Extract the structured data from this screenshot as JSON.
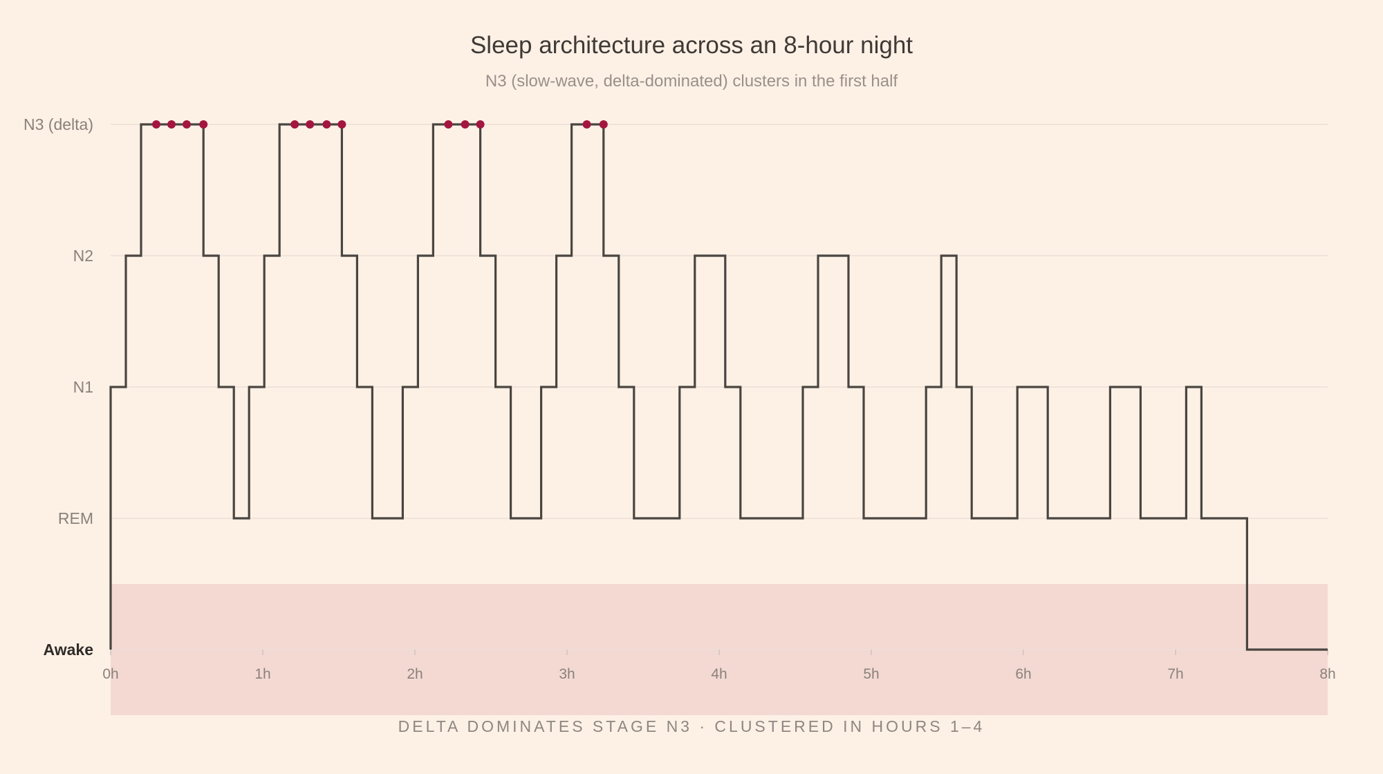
{
  "title": "Sleep architecture across an 8-hour night",
  "subtitle": "N3 (slow-wave, delta-dominated) clusters in the first half",
  "footer": "DELTA DOMINATES STAGE N3 · CLUSTERED IN HOURS 1–4",
  "colors": {
    "background": "#fdf1e6",
    "line": "#4a4540",
    "marker": "#a3163f",
    "band": "#f4d9d3",
    "grid": "#ecdfd6"
  },
  "chart_data": {
    "type": "line",
    "style": "step",
    "title": "Sleep architecture across an 8-hour night",
    "subtitle": "N3 (slow-wave, delta-dominated) clusters in the first half",
    "xlim": [
      0,
      8
    ],
    "x_ticks": [
      "0h",
      "1h",
      "2h",
      "3h",
      "4h",
      "5h",
      "6h",
      "7h",
      "8h"
    ],
    "y_categories": [
      "Awake",
      "REM",
      "N1",
      "N2",
      "N3 (delta)"
    ],
    "y_bold_category": "Awake",
    "grid": true,
    "shaded_band": "Awake",
    "steps": [
      {
        "x": 0.0,
        "stage": "N1"
      },
      {
        "x": 0.1,
        "stage": "N2"
      },
      {
        "x": 0.2,
        "stage": "N3 (delta)"
      },
      {
        "x": 0.61,
        "stage": "N2"
      },
      {
        "x": 0.71,
        "stage": "N1"
      },
      {
        "x": 0.81,
        "stage": "REM"
      },
      {
        "x": 0.91,
        "stage": "N1"
      },
      {
        "x": 1.01,
        "stage": "N2"
      },
      {
        "x": 1.11,
        "stage": "N3 (delta)"
      },
      {
        "x": 1.52,
        "stage": "N2"
      },
      {
        "x": 1.62,
        "stage": "N1"
      },
      {
        "x": 1.72,
        "stage": "REM"
      },
      {
        "x": 1.92,
        "stage": "N1"
      },
      {
        "x": 2.02,
        "stage": "N2"
      },
      {
        "x": 2.12,
        "stage": "N3 (delta)"
      },
      {
        "x": 2.43,
        "stage": "N2"
      },
      {
        "x": 2.53,
        "stage": "N1"
      },
      {
        "x": 2.63,
        "stage": "REM"
      },
      {
        "x": 2.83,
        "stage": "N1"
      },
      {
        "x": 2.93,
        "stage": "N2"
      },
      {
        "x": 3.03,
        "stage": "N3 (delta)"
      },
      {
        "x": 3.24,
        "stage": "N2"
      },
      {
        "x": 3.34,
        "stage": "N1"
      },
      {
        "x": 3.44,
        "stage": "REM"
      },
      {
        "x": 3.74,
        "stage": "N1"
      },
      {
        "x": 3.84,
        "stage": "N2"
      },
      {
        "x": 4.04,
        "stage": "N1"
      },
      {
        "x": 4.14,
        "stage": "REM"
      },
      {
        "x": 4.55,
        "stage": "N1"
      },
      {
        "x": 4.65,
        "stage": "N2"
      },
      {
        "x": 4.85,
        "stage": "N1"
      },
      {
        "x": 4.95,
        "stage": "REM"
      },
      {
        "x": 5.36,
        "stage": "N1"
      },
      {
        "x": 5.46,
        "stage": "N2"
      },
      {
        "x": 5.56,
        "stage": "N1"
      },
      {
        "x": 5.66,
        "stage": "REM"
      },
      {
        "x": 5.96,
        "stage": "N1"
      },
      {
        "x": 6.16,
        "stage": "REM"
      },
      {
        "x": 6.57,
        "stage": "N1"
      },
      {
        "x": 6.77,
        "stage": "REM"
      },
      {
        "x": 7.07,
        "stage": "N1"
      },
      {
        "x": 7.17,
        "stage": "REM"
      },
      {
        "x": 7.47,
        "stage": "Awake"
      },
      {
        "x": 8.0,
        "stage": "Awake"
      }
    ],
    "delta_markers": {
      "stage": "N3 (delta)",
      "x": [
        0.3,
        0.4,
        0.5,
        0.61,
        1.21,
        1.31,
        1.42,
        1.52,
        2.22,
        2.33,
        2.43,
        3.13,
        3.24
      ]
    }
  }
}
